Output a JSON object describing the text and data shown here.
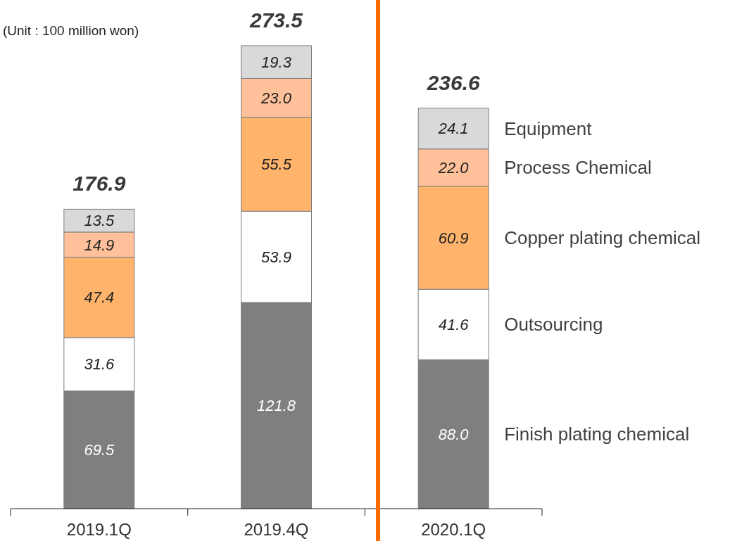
{
  "chart_data": {
    "type": "bar",
    "stacked": true,
    "legend": "right",
    "categories": [
      "2019.1Q",
      "2019.4Q",
      "2020.1Q"
    ],
    "series": [
      {
        "name": "Finish plating chemical",
        "color": "#7f7f7f",
        "values": [
          69.5,
          121.8,
          88.0
        ],
        "value_labels": [
          "69.5",
          "121.8",
          "88.0"
        ]
      },
      {
        "name": "Outsourcing",
        "color": "#ffffff",
        "values": [
          31.6,
          53.9,
          41.6
        ],
        "value_labels": [
          "31.6",
          "53.9",
          "41.6"
        ]
      },
      {
        "name": "Copper plating chemical",
        "color": "#ffb36b",
        "values": [
          47.4,
          55.5,
          60.9
        ],
        "value_labels": [
          "47.4",
          "55.5",
          "60.9"
        ]
      },
      {
        "name": "Process Chemical",
        "color": "#ffc09a",
        "values": [
          14.9,
          23.0,
          22.0
        ],
        "value_labels": [
          "14.9",
          "23.0",
          "22.0"
        ]
      },
      {
        "name": "Equipment",
        "color": "#d9d9d9",
        "values": [
          13.5,
          19.3,
          24.1
        ],
        "value_labels": [
          "13.5",
          "19.3",
          "24.1"
        ]
      }
    ],
    "totals": [
      "176.9",
      "273.5",
      "236.6"
    ],
    "annotations": [
      "(Unit : 100 million won)"
    ]
  }
}
